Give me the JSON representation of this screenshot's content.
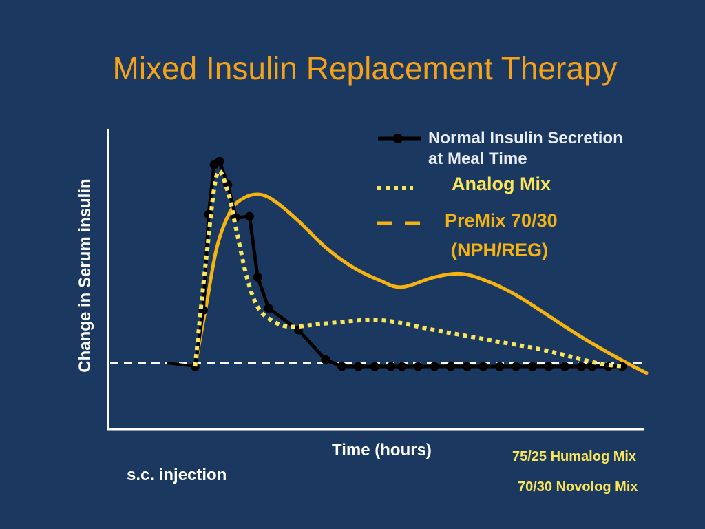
{
  "chart_data": {
    "type": "line",
    "title": "Mixed Insulin Replacement Therapy",
    "xlabel": "Time (hours)",
    "ylabel": "Change in Serum insulin",
    "xlim": [
      0,
      10
    ],
    "ylim": [
      -1,
      3.5
    ],
    "grid": false,
    "legend_position": "top-right",
    "baseline_style": "dashed",
    "series": [
      {
        "name": "Normal Insulin Secretion at Meal Time",
        "name_lines": [
          "Normal Insulin Secretion",
          "at Meal Time"
        ],
        "style": "solid-markers",
        "color": "#000000",
        "x": [
          1.6,
          1.75,
          1.85,
          1.95,
          2.05,
          2.2,
          2.35,
          2.6,
          2.75,
          2.95,
          3.5,
          4.0,
          4.3,
          4.6,
          4.9,
          5.2,
          5.4,
          5.7,
          6.0,
          6.3,
          6.6,
          6.9,
          7.2,
          7.5,
          7.8,
          8.1,
          8.4,
          8.7,
          8.9,
          9.2,
          9.45
        ],
        "y": [
          0.0,
          0.85,
          2.3,
          3.05,
          3.1,
          2.75,
          2.25,
          2.27,
          1.35,
          0.88,
          0.55,
          0.1,
          0.0,
          0.0,
          0.0,
          0.0,
          0.0,
          0.0,
          0.0,
          0.0,
          0.0,
          0.0,
          0.0,
          0.0,
          0.0,
          0.0,
          0.0,
          0.0,
          0.0,
          0.0,
          0.0
        ]
      },
      {
        "name": "Analog Mix",
        "style": "dotted",
        "color": "#f8e55a",
        "x": [
          1.6,
          1.8,
          2.0,
          2.2,
          2.35,
          2.55,
          2.75,
          3.0,
          3.35,
          4.0,
          5.0,
          6.0,
          7.0,
          8.0,
          9.0,
          9.5
        ],
        "y": [
          0.0,
          1.6,
          2.9,
          2.65,
          2.1,
          1.35,
          0.9,
          0.7,
          0.6,
          0.65,
          0.7,
          0.55,
          0.4,
          0.25,
          0.05,
          0.0
        ]
      },
      {
        "name": "PreMix 70/30 (NPH/REG)",
        "name_lines": [
          "PreMix 70/30",
          "(NPH/REG)"
        ],
        "style": "solid",
        "color": "#f5b312",
        "x": [
          1.6,
          1.8,
          2.0,
          2.25,
          2.5,
          2.8,
          3.1,
          3.5,
          4.0,
          4.5,
          5.0,
          5.4,
          6.0,
          6.5,
          7.0,
          7.5,
          8.0,
          8.5,
          9.0,
          9.5,
          9.9
        ],
        "y": [
          0.0,
          0.9,
          1.8,
          2.35,
          2.55,
          2.6,
          2.48,
          2.2,
          1.8,
          1.5,
          1.3,
          1.2,
          1.35,
          1.4,
          1.28,
          1.08,
          0.82,
          0.55,
          0.3,
          0.07,
          -0.1
        ]
      }
    ]
  },
  "notes": {
    "injection": "s.c. injection",
    "mix1": "75/25 Humalog Mix",
    "mix2": "70/30  Novolog  Mix"
  }
}
